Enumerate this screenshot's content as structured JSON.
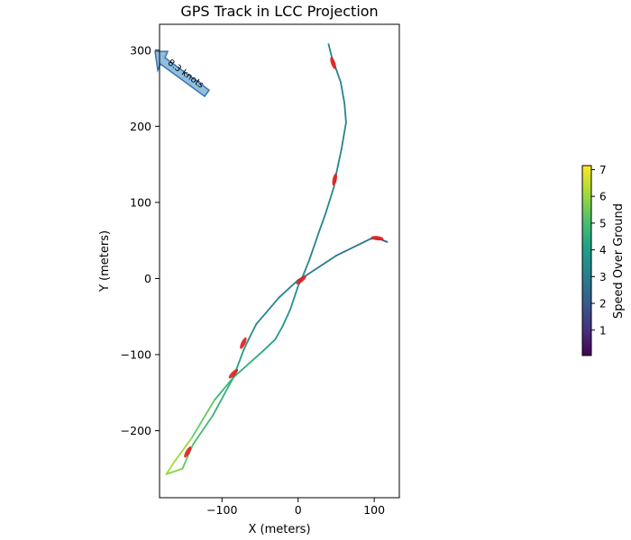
{
  "chart_data": {
    "type": "line",
    "title": "GPS Track in LCC Projection",
    "xlabel": "X (meters)",
    "ylabel": "Y (meters)",
    "xlim": [
      -182,
      133
    ],
    "ylim": [
      -288,
      334
    ],
    "x_ticks": [
      -100,
      0,
      100
    ],
    "y_ticks": [
      -200,
      -100,
      0,
      100,
      200,
      300
    ],
    "x_tick_labels": [
      "−100",
      "0",
      "100"
    ],
    "y_tick_labels": [
      "−200",
      "−100",
      "0",
      "100",
      "200",
      "300"
    ],
    "grid": false,
    "colormap": "viridis",
    "colorbar": {
      "label": "Speed Over Ground",
      "min": 0.05,
      "max": 7.15,
      "ticks": [
        1,
        2,
        3,
        4,
        5,
        6,
        7
      ],
      "tick_labels": [
        "1",
        "2",
        "3",
        "4",
        "5",
        "6",
        "7"
      ]
    },
    "annotation": {
      "text": "8.3 knots",
      "x": -150,
      "y": 270,
      "direction": "up-left",
      "color": "#8fbfe0"
    },
    "track": [
      {
        "x": 40,
        "y": 308,
        "speed": 3.4
      },
      {
        "x": 44,
        "y": 292,
        "speed": 3.3
      },
      {
        "x": 50,
        "y": 275,
        "speed": 3.2
      },
      {
        "x": 56,
        "y": 258,
        "speed": 3.2
      },
      {
        "x": 61,
        "y": 230,
        "speed": 3.1
      },
      {
        "x": 63,
        "y": 205,
        "speed": 3.2
      },
      {
        "x": 57,
        "y": 170,
        "speed": 3.3
      },
      {
        "x": 50,
        "y": 137,
        "speed": 3.3
      },
      {
        "x": 47,
        "y": 120,
        "speed": 3.4
      },
      {
        "x": 36,
        "y": 85,
        "speed": 3.3
      },
      {
        "x": 27,
        "y": 60,
        "speed": 3.2
      },
      {
        "x": 15,
        "y": 25,
        "speed": 3.2
      },
      {
        "x": 7,
        "y": 5,
        "speed": 3.3
      },
      {
        "x": 0,
        "y": -10,
        "speed": 3.5
      },
      {
        "x": -10,
        "y": -40,
        "speed": 3.6
      },
      {
        "x": -20,
        "y": -62,
        "speed": 3.8
      },
      {
        "x": -30,
        "y": -80,
        "speed": 4.0
      },
      {
        "x": -48,
        "y": -97,
        "speed": 4.3
      },
      {
        "x": -85,
        "y": -130,
        "speed": 4.6
      },
      {
        "x": -110,
        "y": -160,
        "speed": 5.0
      },
      {
        "x": -140,
        "y": -210,
        "speed": 5.8
      },
      {
        "x": -162,
        "y": -240,
        "speed": 6.3
      },
      {
        "x": -173,
        "y": -257,
        "speed": 6.0
      },
      {
        "x": -152,
        "y": -250,
        "speed": 5.6
      },
      {
        "x": -138,
        "y": -218,
        "speed": 5.1
      },
      {
        "x": -112,
        "y": -180,
        "speed": 4.8
      },
      {
        "x": -85,
        "y": -130,
        "speed": 4.3
      },
      {
        "x": -72,
        "y": -95,
        "speed": 3.9
      },
      {
        "x": -65,
        "y": -80,
        "speed": 3.6
      },
      {
        "x": -55,
        "y": -60,
        "speed": 3.3
      },
      {
        "x": -25,
        "y": -25,
        "speed": 3.1
      },
      {
        "x": 0,
        "y": -2,
        "speed": 3.0
      },
      {
        "x": 12,
        "y": 5,
        "speed": 3.0
      },
      {
        "x": 50,
        "y": 30,
        "speed": 2.9
      },
      {
        "x": 95,
        "y": 52,
        "speed": 2.6
      },
      {
        "x": 104,
        "y": 53,
        "speed": 2.2
      },
      {
        "x": 112,
        "y": 50,
        "speed": 1.9
      },
      {
        "x": 117,
        "y": 48,
        "speed": 1.8
      }
    ],
    "direction_markers": [
      {
        "x": 46,
        "y": 283
      },
      {
        "x": 48,
        "y": 130
      },
      {
        "x": 4,
        "y": -2
      },
      {
        "x": 104,
        "y": 53
      },
      {
        "x": -72,
        "y": -85
      },
      {
        "x": -85,
        "y": -125
      },
      {
        "x": -145,
        "y": -228
      }
    ]
  }
}
